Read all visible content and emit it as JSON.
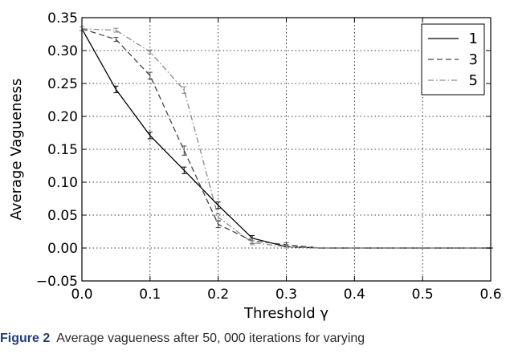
{
  "chart_data": {
    "type": "line",
    "xlabel": "Threshold γ",
    "ylabel": "Average Vagueness",
    "xlim": [
      0.0,
      0.6
    ],
    "ylim": [
      -0.05,
      0.35
    ],
    "xticks": [
      "0.0",
      "0.1",
      "0.2",
      "0.3",
      "0.4",
      "0.5",
      "0.6"
    ],
    "yticks": [
      "−0.05",
      "0.00",
      "0.05",
      "0.10",
      "0.15",
      "0.20",
      "0.25",
      "0.30",
      "0.35"
    ],
    "grid": true,
    "legend_position": "top-right",
    "x": [
      0.0,
      0.05,
      0.1,
      0.15,
      0.2,
      0.25,
      0.3,
      0.35,
      0.4,
      0.45,
      0.5,
      0.55,
      0.6
    ],
    "series": [
      {
        "name": "1",
        "style": "solid",
        "color": "#000000",
        "values": [
          0.333,
          0.241,
          0.171,
          0.118,
          0.065,
          0.015,
          0.002,
          0.0,
          0.0,
          0.0,
          0.0,
          0.0,
          0.0
        ],
        "errors": [
          0.003,
          0.005,
          0.005,
          0.005,
          0.005,
          0.004,
          0.002,
          0.0005,
          0.0005,
          0.0005,
          0.0005,
          0.0005,
          0.0005
        ]
      },
      {
        "name": "3",
        "style": "dashed",
        "color": "#444444",
        "values": [
          0.333,
          0.317,
          0.262,
          0.148,
          0.036,
          0.011,
          0.005,
          0.0,
          0.0,
          0.0,
          0.0,
          0.0,
          0.0
        ],
        "errors": [
          0.003,
          0.003,
          0.005,
          0.007,
          0.005,
          0.004,
          0.003,
          0.0005,
          0.0005,
          0.0005,
          0.0005,
          0.0005,
          0.0005
        ]
      },
      {
        "name": "5",
        "style": "dashdot",
        "color": "#8a8a8a",
        "values": [
          0.333,
          0.331,
          0.298,
          0.24,
          0.047,
          0.008,
          0.002,
          0.0,
          0.0,
          0.0,
          0.0,
          0.0,
          0.0
        ],
        "errors": [
          0.003,
          0.003,
          0.003,
          0.005,
          0.005,
          0.003,
          0.002,
          0.0005,
          0.0005,
          0.0005,
          0.0005,
          0.0005,
          0.0005
        ]
      }
    ]
  },
  "caption": {
    "label": "Figure 2",
    "text": "Average vagueness after 50, 000 iterations for varying"
  }
}
